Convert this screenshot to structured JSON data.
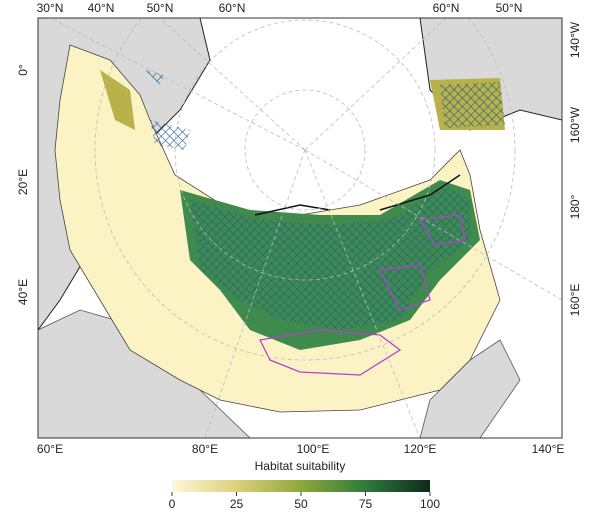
{
  "map": {
    "top_labels": [
      "30°N",
      "40°N",
      "50°N",
      "60°N",
      "60°N",
      "50°N"
    ],
    "left_labels": [
      "0°",
      "20°E",
      "40°E"
    ],
    "right_labels": [
      "140°W",
      "160°W",
      "180°",
      "160°E"
    ],
    "bottom_labels": [
      "60°E",
      "80°E",
      "100°E",
      "120°E",
      "140°E"
    ]
  },
  "legend": {
    "title": "Habitat suitability",
    "range": [
      0,
      100
    ],
    "ticks": [
      0,
      25,
      50,
      75,
      100
    ],
    "colors": [
      "#fdf8d8",
      "#ddd07a",
      "#8fa83a",
      "#2f7a3a",
      "#0e2a1c"
    ]
  }
}
